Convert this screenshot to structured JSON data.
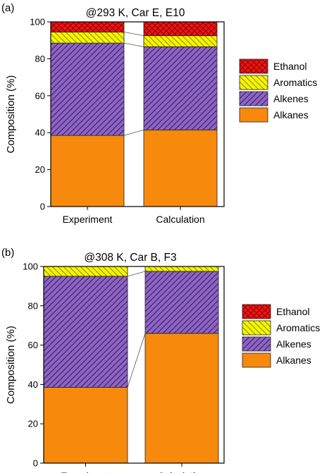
{
  "colors": {
    "Ethanol": {
      "fill": "#f01414",
      "line": "#8a0000",
      "pattern": "crosshatch"
    },
    "Aromatics": {
      "fill": "#f5f500",
      "line": "#8a8a00",
      "pattern": "backslash"
    },
    "Alkenes": {
      "fill": "#8e63c6",
      "line": "#2e1d4f",
      "pattern": "slash"
    },
    "Alkanes": {
      "fill": "#f7890d",
      "line": "#f7890d",
      "pattern": "solid"
    }
  },
  "chart_data": [
    {
      "type": "bar",
      "stacked": true,
      "panel_label": "(a)",
      "title": "@293 K, Car E, E10",
      "categories": [
        "Experiment",
        "Calculation"
      ],
      "ylabel": "Composition (%)",
      "ylim": [
        0,
        100
      ],
      "yticks": [
        0,
        20,
        40,
        60,
        80,
        100
      ],
      "legend_position": "right",
      "legend": [
        "Ethanol",
        "Aromatics",
        "Alkenes",
        "Alkanes"
      ],
      "series": [
        {
          "name": "Alkanes",
          "values": [
            38.5,
            41.5
          ]
        },
        {
          "name": "Alkenes",
          "values": [
            50.0,
            45.0
          ]
        },
        {
          "name": "Aromatics",
          "values": [
            6.0,
            6.0
          ]
        },
        {
          "name": "Ethanol",
          "values": [
            5.5,
            7.5
          ]
        }
      ]
    },
    {
      "type": "bar",
      "stacked": true,
      "panel_label": "(b)",
      "title": "@308 K, Car B, F3",
      "categories": [
        "Experiment",
        "Calculation"
      ],
      "ylabel": "Composition (%)",
      "ylim": [
        0,
        100
      ],
      "yticks": [
        0,
        20,
        40,
        60,
        80,
        100
      ],
      "legend_position": "right",
      "legend": [
        "Ethanol",
        "Aromatics",
        "Alkenes",
        "Alkanes"
      ],
      "series": [
        {
          "name": "Alkanes",
          "values": [
            38.5,
            66.0
          ]
        },
        {
          "name": "Alkenes",
          "values": [
            56.5,
            31.5
          ]
        },
        {
          "name": "Aromatics",
          "values": [
            5.0,
            2.5
          ]
        },
        {
          "name": "Ethanol",
          "values": [
            0,
            0
          ]
        }
      ]
    }
  ]
}
